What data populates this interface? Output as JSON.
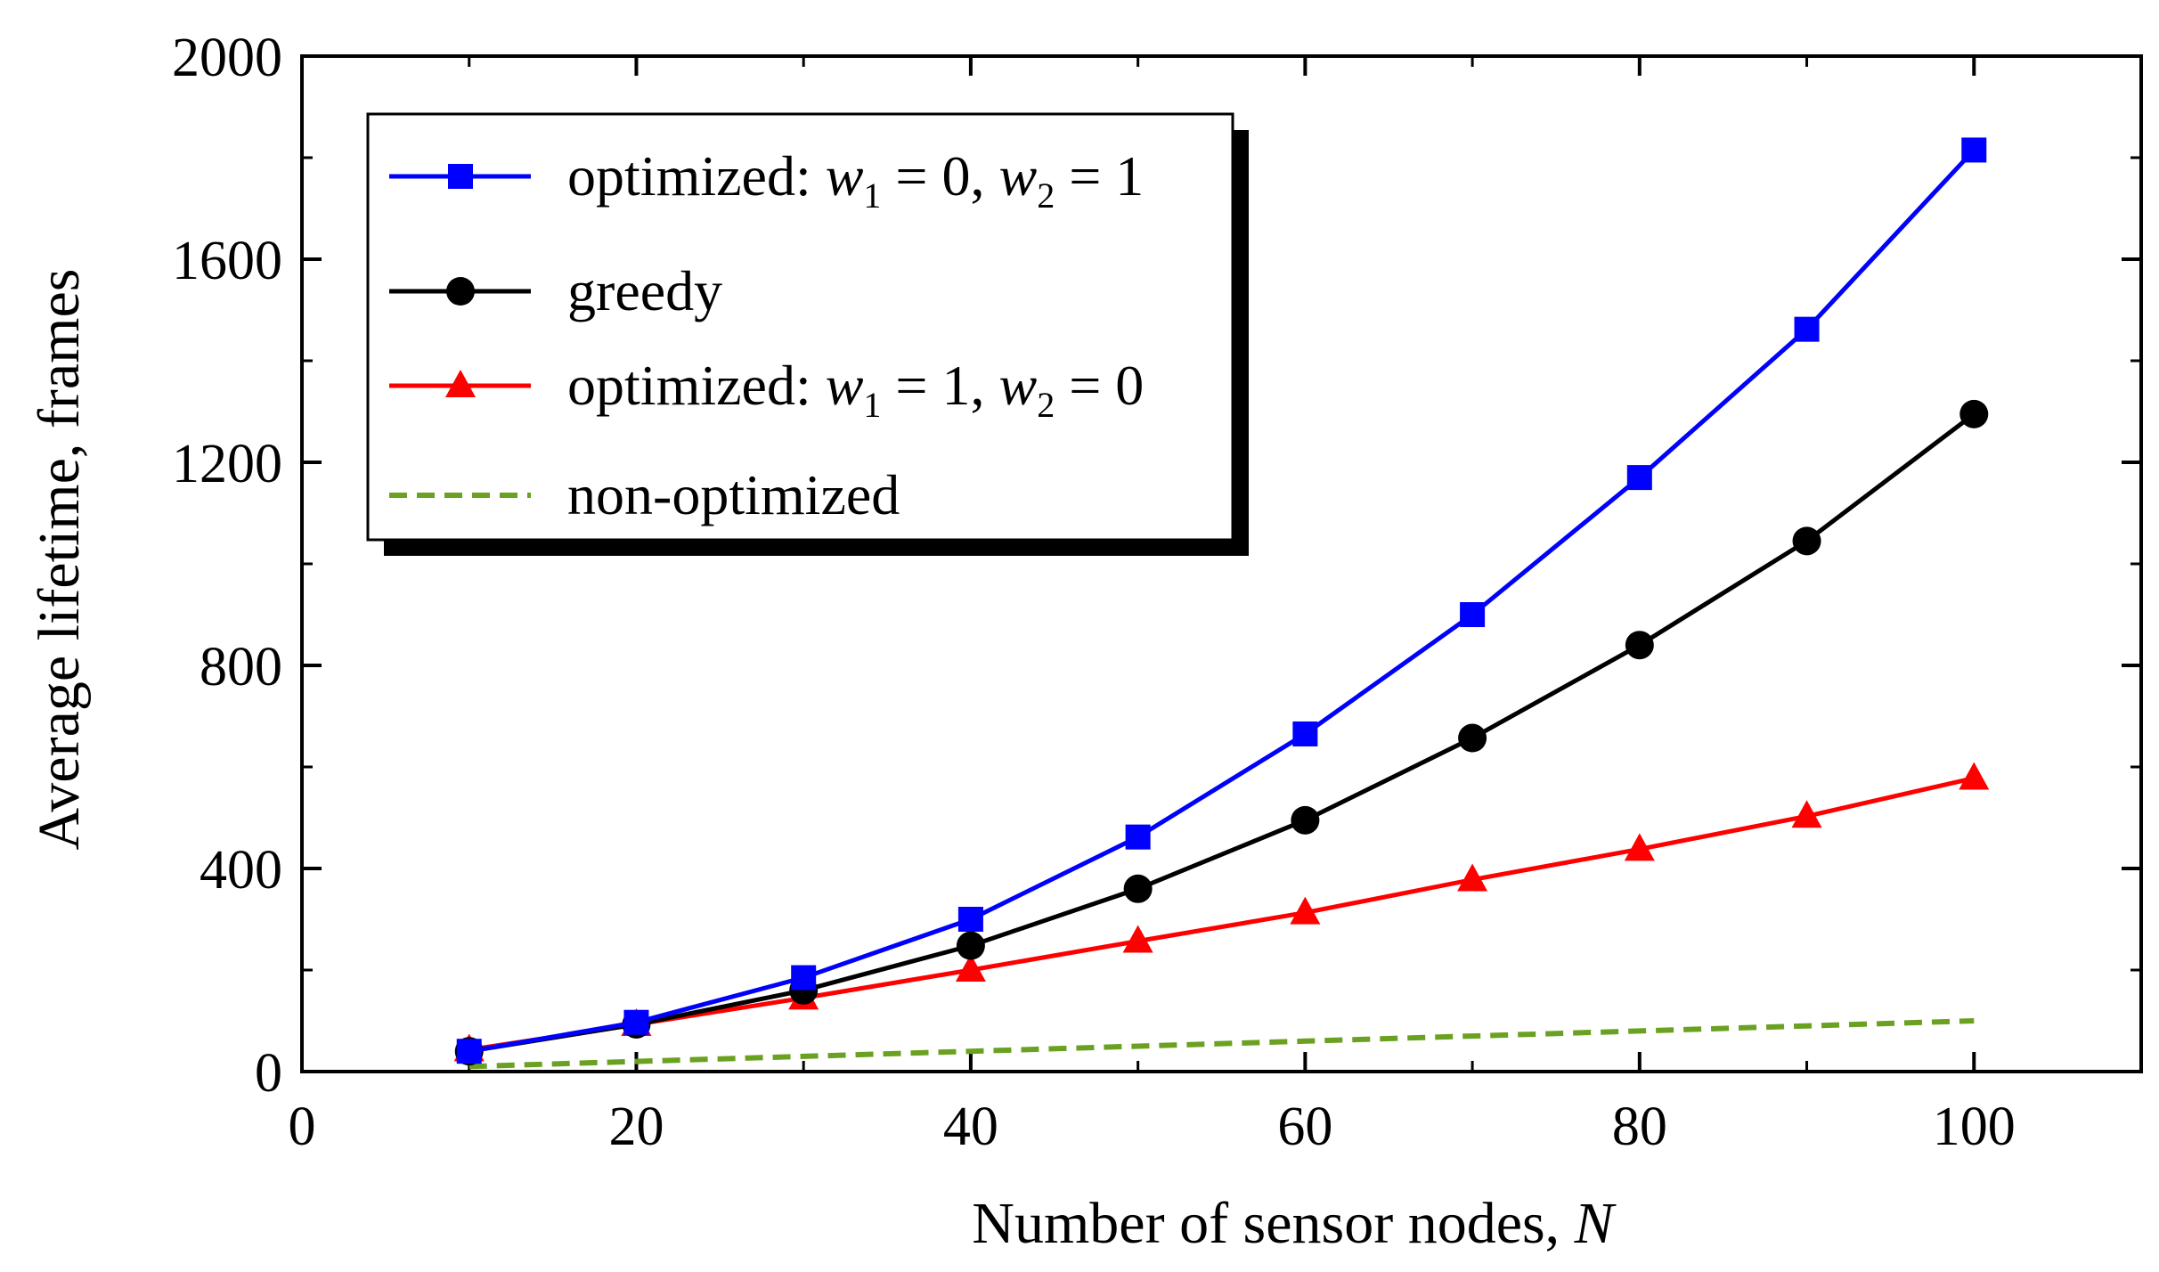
{
  "chart_data": {
    "type": "line",
    "title": "",
    "xlabel": "Number of sensor nodes, ",
    "xlabel_var": "N",
    "ylabel": "Average lifetime, frames",
    "xlim": [
      0,
      110
    ],
    "ylim": [
      0,
      2000
    ],
    "xticks": [
      0,
      20,
      40,
      60,
      80,
      100
    ],
    "yticks": [
      0,
      400,
      800,
      1200,
      1600,
      2000
    ],
    "x": [
      10,
      20,
      30,
      40,
      50,
      60,
      70,
      80,
      90,
      100
    ],
    "legend_position": "top-left",
    "series": [
      {
        "name": "optimized: w1 = 0, w2 = 1",
        "legend": {
          "prefix": "optimized: ",
          "v1": "w",
          "s1": "1",
          "m1": " = 0, ",
          "v2": "w",
          "s2": "2",
          "m2": " = 1"
        },
        "color": "#0000ff",
        "marker": "square",
        "dash": false,
        "values": [
          40,
          97,
          185,
          300,
          462,
          665,
          900,
          1170,
          1462,
          1815
        ]
      },
      {
        "name": "greedy",
        "legend": {
          "prefix": "greedy"
        },
        "color": "#000000",
        "marker": "circle",
        "dash": false,
        "values": [
          40,
          93,
          160,
          248,
          360,
          495,
          657,
          840,
          1045,
          1295
        ]
      },
      {
        "name": "optimized: w1 = 1, w2 = 0",
        "legend": {
          "prefix": "optimized: ",
          "v1": "w",
          "s1": "1",
          "m1": " = 1, ",
          "v2": "w",
          "s2": "2",
          "m2": " = 0"
        },
        "color": "#ff0000",
        "marker": "triangle",
        "dash": false,
        "values": [
          43,
          93,
          145,
          200,
          257,
          313,
          378,
          438,
          503,
          578
        ]
      },
      {
        "name": "non-optimized",
        "legend": {
          "prefix": "non-optimized"
        },
        "color": "#6aa121",
        "marker": "none",
        "dash": true,
        "values": [
          10,
          20,
          30,
          40,
          50,
          60,
          70,
          80,
          90,
          100
        ]
      }
    ]
  }
}
